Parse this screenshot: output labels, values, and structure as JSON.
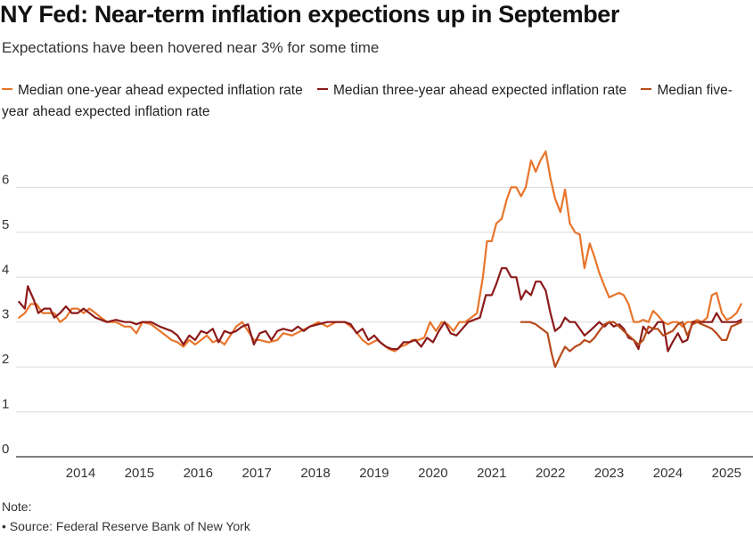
{
  "header": {
    "title": "NY Fed: Near-term inflation expections up in September",
    "subtitle": "Expectations have been hovered near 3% for some time"
  },
  "footer": {
    "note_label": "Note:",
    "source": "• Source: Federal Reserve Bank of New York"
  },
  "chart_data": {
    "type": "line",
    "title": "NY Fed: Near-term inflation expections up in September",
    "subtitle": "Expectations have been hovered near 3% for some time",
    "xlabel": "",
    "ylabel": "",
    "xlim": [
      2013.4,
      2025.95
    ],
    "ylim": [
      0,
      7
    ],
    "y_ticks": [
      0,
      1,
      2,
      3,
      4,
      5,
      6
    ],
    "x_ticks": [
      2014,
      2015,
      2016,
      2017,
      2018,
      2019,
      2020,
      2021,
      2022,
      2023,
      2024,
      2025
    ],
    "grid": true,
    "legend_position": "top",
    "series": [
      {
        "name": "Median one-year ahead expected inflation rate",
        "color": "#e8752b",
        "points": [
          [
            2013.45,
            3.1
          ],
          [
            2013.55,
            3.2
          ],
          [
            2013.65,
            3.4
          ],
          [
            2013.75,
            3.4
          ],
          [
            2013.85,
            3.2
          ],
          [
            2013.95,
            3.2
          ],
          [
            2014.05,
            3.2
          ],
          [
            2014.15,
            3.0
          ],
          [
            2014.25,
            3.1
          ],
          [
            2014.35,
            3.3
          ],
          [
            2014.45,
            3.3
          ],
          [
            2014.55,
            3.2
          ],
          [
            2014.65,
            3.3
          ],
          [
            2014.75,
            3.2
          ],
          [
            2014.85,
            3.1
          ],
          [
            2014.95,
            3.0
          ],
          [
            2015.1,
            3.0
          ],
          [
            2015.25,
            2.9
          ],
          [
            2015.35,
            2.9
          ],
          [
            2015.45,
            2.75
          ],
          [
            2015.55,
            3.0
          ],
          [
            2015.7,
            2.95
          ],
          [
            2015.85,
            2.8
          ],
          [
            2015.95,
            2.7
          ],
          [
            2016.05,
            2.6
          ],
          [
            2016.15,
            2.55
          ],
          [
            2016.25,
            2.45
          ],
          [
            2016.35,
            2.6
          ],
          [
            2016.45,
            2.5
          ],
          [
            2016.55,
            2.6
          ],
          [
            2016.65,
            2.7
          ],
          [
            2016.75,
            2.55
          ],
          [
            2016.85,
            2.6
          ],
          [
            2016.95,
            2.5
          ],
          [
            2017.05,
            2.7
          ],
          [
            2017.15,
            2.9
          ],
          [
            2017.25,
            3.0
          ],
          [
            2017.35,
            2.8
          ],
          [
            2017.45,
            2.6
          ],
          [
            2017.55,
            2.6
          ],
          [
            2017.7,
            2.55
          ],
          [
            2017.85,
            2.6
          ],
          [
            2017.95,
            2.75
          ],
          [
            2018.1,
            2.7
          ],
          [
            2018.25,
            2.8
          ],
          [
            2018.4,
            2.9
          ],
          [
            2018.55,
            3.0
          ],
          [
            2018.7,
            2.9
          ],
          [
            2018.85,
            3.0
          ],
          [
            2019.0,
            3.0
          ],
          [
            2019.15,
            2.85
          ],
          [
            2019.3,
            2.6
          ],
          [
            2019.4,
            2.5
          ],
          [
            2019.55,
            2.6
          ],
          [
            2019.65,
            2.5
          ],
          [
            2019.75,
            2.4
          ],
          [
            2019.85,
            2.35
          ],
          [
            2019.95,
            2.45
          ],
          [
            2020.05,
            2.5
          ],
          [
            2020.15,
            2.6
          ],
          [
            2020.25,
            2.6
          ],
          [
            2020.35,
            2.65
          ],
          [
            2020.45,
            3.0
          ],
          [
            2020.55,
            2.8
          ],
          [
            2020.65,
            3.0
          ],
          [
            2020.75,
            2.95
          ],
          [
            2020.85,
            2.8
          ],
          [
            2020.95,
            3.0
          ],
          [
            2021.05,
            3.0
          ],
          [
            2021.15,
            3.1
          ],
          [
            2021.25,
            3.2
          ],
          [
            2021.35,
            4.0
          ],
          [
            2021.42,
            4.8
          ],
          [
            2021.5,
            4.8
          ],
          [
            2021.58,
            5.2
          ],
          [
            2021.67,
            5.3
          ],
          [
            2021.75,
            5.7
          ],
          [
            2021.83,
            6.0
          ],
          [
            2021.92,
            6.0
          ],
          [
            2022.0,
            5.8
          ],
          [
            2022.08,
            6.0
          ],
          [
            2022.17,
            6.6
          ],
          [
            2022.25,
            6.35
          ],
          [
            2022.33,
            6.6
          ],
          [
            2022.42,
            6.8
          ],
          [
            2022.5,
            6.2
          ],
          [
            2022.58,
            5.75
          ],
          [
            2022.67,
            5.45
          ],
          [
            2022.75,
            5.95
          ],
          [
            2022.83,
            5.2
          ],
          [
            2022.92,
            5.0
          ],
          [
            2023.0,
            4.95
          ],
          [
            2023.08,
            4.2
          ],
          [
            2023.17,
            4.75
          ],
          [
            2023.25,
            4.45
          ],
          [
            2023.33,
            4.1
          ],
          [
            2023.42,
            3.8
          ],
          [
            2023.5,
            3.55
          ],
          [
            2023.58,
            3.6
          ],
          [
            2023.67,
            3.65
          ],
          [
            2023.75,
            3.6
          ],
          [
            2023.83,
            3.4
          ],
          [
            2023.92,
            3.0
          ],
          [
            2024.0,
            3.0
          ],
          [
            2024.08,
            3.05
          ],
          [
            2024.17,
            3.0
          ],
          [
            2024.25,
            3.25
          ],
          [
            2024.33,
            3.15
          ],
          [
            2024.42,
            3.0
          ],
          [
            2024.5,
            2.95
          ],
          [
            2024.58,
            3.0
          ],
          [
            2024.67,
            3.0
          ],
          [
            2024.75,
            2.9
          ],
          [
            2024.83,
            3.0
          ],
          [
            2024.92,
            3.0
          ],
          [
            2025.0,
            3.05
          ],
          [
            2025.08,
            3.0
          ],
          [
            2025.17,
            3.1
          ],
          [
            2025.25,
            3.6
          ],
          [
            2025.33,
            3.65
          ],
          [
            2025.42,
            3.2
          ],
          [
            2025.5,
            3.05
          ],
          [
            2025.58,
            3.1
          ],
          [
            2025.67,
            3.2
          ],
          [
            2025.75,
            3.4
          ]
        ]
      },
      {
        "name": "Median three-year ahead expected inflation rate",
        "color": "#8b1a1a",
        "points": [
          [
            2013.45,
            3.45
          ],
          [
            2013.55,
            3.3
          ],
          [
            2013.6,
            3.8
          ],
          [
            2013.7,
            3.5
          ],
          [
            2013.78,
            3.2
          ],
          [
            2013.88,
            3.3
          ],
          [
            2013.98,
            3.3
          ],
          [
            2014.05,
            3.1
          ],
          [
            2014.15,
            3.2
          ],
          [
            2014.25,
            3.35
          ],
          [
            2014.35,
            3.2
          ],
          [
            2014.45,
            3.2
          ],
          [
            2014.55,
            3.3
          ],
          [
            2014.65,
            3.2
          ],
          [
            2014.75,
            3.1
          ],
          [
            2014.85,
            3.05
          ],
          [
            2014.95,
            3.0
          ],
          [
            2015.1,
            3.05
          ],
          [
            2015.25,
            3.0
          ],
          [
            2015.35,
            3.0
          ],
          [
            2015.45,
            2.95
          ],
          [
            2015.55,
            3.0
          ],
          [
            2015.7,
            3.0
          ],
          [
            2015.85,
            2.9
          ],
          [
            2015.95,
            2.85
          ],
          [
            2016.05,
            2.8
          ],
          [
            2016.15,
            2.7
          ],
          [
            2016.25,
            2.5
          ],
          [
            2016.35,
            2.7
          ],
          [
            2016.45,
            2.6
          ],
          [
            2016.55,
            2.8
          ],
          [
            2016.65,
            2.75
          ],
          [
            2016.75,
            2.85
          ],
          [
            2016.85,
            2.55
          ],
          [
            2016.95,
            2.8
          ],
          [
            2017.05,
            2.75
          ],
          [
            2017.15,
            2.8
          ],
          [
            2017.25,
            2.9
          ],
          [
            2017.35,
            2.95
          ],
          [
            2017.45,
            2.5
          ],
          [
            2017.55,
            2.75
          ],
          [
            2017.65,
            2.8
          ],
          [
            2017.75,
            2.6
          ],
          [
            2017.85,
            2.8
          ],
          [
            2017.95,
            2.85
          ],
          [
            2018.1,
            2.8
          ],
          [
            2018.2,
            2.9
          ],
          [
            2018.3,
            2.8
          ],
          [
            2018.4,
            2.9
          ],
          [
            2018.55,
            2.95
          ],
          [
            2018.7,
            3.0
          ],
          [
            2018.85,
            3.0
          ],
          [
            2019.0,
            3.0
          ],
          [
            2019.1,
            2.95
          ],
          [
            2019.2,
            2.75
          ],
          [
            2019.3,
            2.85
          ],
          [
            2019.4,
            2.6
          ],
          [
            2019.5,
            2.7
          ],
          [
            2019.6,
            2.55
          ],
          [
            2019.7,
            2.45
          ],
          [
            2019.8,
            2.4
          ],
          [
            2019.9,
            2.4
          ],
          [
            2020.0,
            2.55
          ],
          [
            2020.1,
            2.55
          ],
          [
            2020.2,
            2.6
          ],
          [
            2020.3,
            2.45
          ],
          [
            2020.4,
            2.65
          ],
          [
            2020.5,
            2.55
          ],
          [
            2020.6,
            2.8
          ],
          [
            2020.7,
            3.0
          ],
          [
            2020.8,
            2.75
          ],
          [
            2020.9,
            2.7
          ],
          [
            2021.0,
            2.85
          ],
          [
            2021.1,
            3.0
          ],
          [
            2021.2,
            3.05
          ],
          [
            2021.3,
            3.1
          ],
          [
            2021.4,
            3.6
          ],
          [
            2021.5,
            3.6
          ],
          [
            2021.58,
            3.85
          ],
          [
            2021.67,
            4.2
          ],
          [
            2021.75,
            4.2
          ],
          [
            2021.83,
            4.0
          ],
          [
            2021.92,
            4.0
          ],
          [
            2022.0,
            3.5
          ],
          [
            2022.08,
            3.7
          ],
          [
            2022.17,
            3.6
          ],
          [
            2022.25,
            3.9
          ],
          [
            2022.33,
            3.9
          ],
          [
            2022.42,
            3.7
          ],
          [
            2022.5,
            3.2
          ],
          [
            2022.58,
            2.8
          ],
          [
            2022.67,
            2.9
          ],
          [
            2022.75,
            3.1
          ],
          [
            2022.83,
            3.0
          ],
          [
            2022.92,
            3.0
          ],
          [
            2023.0,
            2.85
          ],
          [
            2023.08,
            2.7
          ],
          [
            2023.17,
            2.8
          ],
          [
            2023.25,
            2.9
          ],
          [
            2023.33,
            3.0
          ],
          [
            2023.42,
            2.9
          ],
          [
            2023.5,
            3.0
          ],
          [
            2023.58,
            2.9
          ],
          [
            2023.67,
            2.95
          ],
          [
            2023.75,
            2.85
          ],
          [
            2023.83,
            2.65
          ],
          [
            2023.92,
            2.6
          ],
          [
            2024.0,
            2.4
          ],
          [
            2024.08,
            2.9
          ],
          [
            2024.17,
            2.75
          ],
          [
            2024.25,
            2.85
          ],
          [
            2024.33,
            3.0
          ],
          [
            2024.42,
            3.0
          ],
          [
            2024.5,
            2.35
          ],
          [
            2024.58,
            2.55
          ],
          [
            2024.67,
            2.75
          ],
          [
            2024.75,
            2.55
          ],
          [
            2024.83,
            2.6
          ],
          [
            2024.92,
            3.0
          ],
          [
            2025.0,
            3.0
          ],
          [
            2025.08,
            3.0
          ],
          [
            2025.17,
            3.0
          ],
          [
            2025.25,
            3.0
          ],
          [
            2025.33,
            3.2
          ],
          [
            2025.42,
            3.0
          ],
          [
            2025.5,
            3.0
          ],
          [
            2025.58,
            3.0
          ],
          [
            2025.67,
            3.0
          ],
          [
            2025.75,
            3.05
          ]
        ]
      },
      {
        "name": "Median five-year ahead expected inflation rate",
        "color": "#b84a1a",
        "points": [
          [
            2022.0,
            3.0
          ],
          [
            2022.15,
            3.0
          ],
          [
            2022.25,
            2.95
          ],
          [
            2022.35,
            2.85
          ],
          [
            2022.45,
            2.75
          ],
          [
            2022.52,
            2.3
          ],
          [
            2022.58,
            2.0
          ],
          [
            2022.67,
            2.25
          ],
          [
            2022.75,
            2.45
          ],
          [
            2022.83,
            2.35
          ],
          [
            2022.92,
            2.45
          ],
          [
            2023.0,
            2.5
          ],
          [
            2023.08,
            2.6
          ],
          [
            2023.17,
            2.55
          ],
          [
            2023.25,
            2.65
          ],
          [
            2023.33,
            2.8
          ],
          [
            2023.42,
            2.95
          ],
          [
            2023.5,
            3.0
          ],
          [
            2023.58,
            3.0
          ],
          [
            2023.67,
            2.9
          ],
          [
            2023.75,
            2.8
          ],
          [
            2023.83,
            2.7
          ],
          [
            2023.92,
            2.6
          ],
          [
            2024.0,
            2.5
          ],
          [
            2024.08,
            2.6
          ],
          [
            2024.17,
            2.9
          ],
          [
            2024.25,
            2.85
          ],
          [
            2024.33,
            2.85
          ],
          [
            2024.42,
            2.7
          ],
          [
            2024.5,
            2.75
          ],
          [
            2024.58,
            2.8
          ],
          [
            2024.67,
            2.95
          ],
          [
            2024.75,
            3.0
          ],
          [
            2024.83,
            2.7
          ],
          [
            2024.92,
            2.95
          ],
          [
            2025.0,
            3.0
          ],
          [
            2025.08,
            2.95
          ],
          [
            2025.17,
            2.9
          ],
          [
            2025.25,
            2.85
          ],
          [
            2025.33,
            2.75
          ],
          [
            2025.42,
            2.6
          ],
          [
            2025.5,
            2.6
          ],
          [
            2025.58,
            2.9
          ],
          [
            2025.67,
            2.95
          ],
          [
            2025.75,
            3.0
          ]
        ]
      }
    ]
  }
}
